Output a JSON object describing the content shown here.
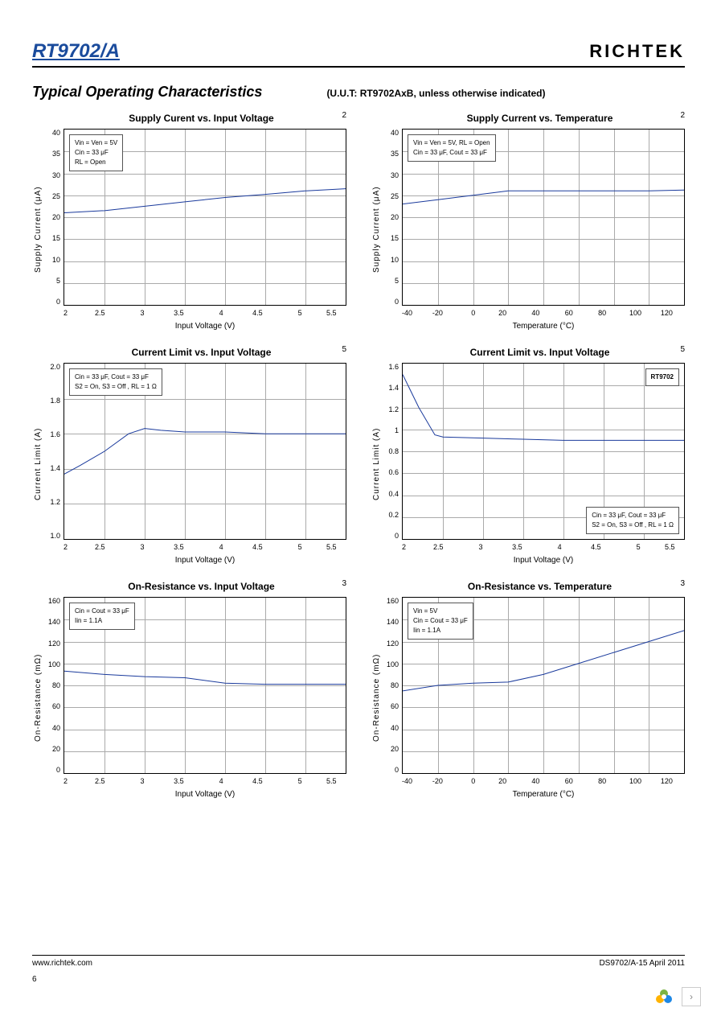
{
  "header": {
    "part_number": "RT9702/A",
    "logo": "RICHTEK"
  },
  "section": {
    "title": "Typical Operating Characteristics",
    "subtitle": "(U.U.T: RT9702AxB, unless otherwise indicated)"
  },
  "charts": [
    {
      "corner": "2",
      "title": "Supply Curent vs. Input Voltage",
      "ylabel": "Supply Current (μA)",
      "xlabel": "Input Voltage (V)",
      "yticks": [
        "40",
        "35",
        "30",
        "25",
        "20",
        "15",
        "10",
        "5",
        "0"
      ],
      "xticks": [
        "2",
        "2.5",
        "3",
        "3.5",
        "4",
        "4.5",
        "5",
        "5.5"
      ],
      "ylim": [
        0,
        40
      ],
      "xlim": [
        2,
        5.5
      ],
      "legend_pos": "top-left",
      "legend": [
        "Vin = Ven = 5V",
        "Cin = 33 μF",
        "RL = Open"
      ],
      "line_color": "#1a3a9c",
      "data": [
        [
          2,
          21
        ],
        [
          2.5,
          21.5
        ],
        [
          3,
          22.5
        ],
        [
          3.5,
          23.5
        ],
        [
          4,
          24.5
        ],
        [
          4.5,
          25.2
        ],
        [
          5,
          26
        ],
        [
          5.5,
          26.5
        ]
      ]
    },
    {
      "corner": "2",
      "title": "Supply Current vs. Temperature",
      "ylabel": "Supply Current (μA)",
      "xlabel": "Temperature (°C)",
      "yticks": [
        "40",
        "35",
        "30",
        "25",
        "20",
        "15",
        "10",
        "5",
        "0"
      ],
      "xticks": [
        "-40",
        "-20",
        "0",
        "20",
        "40",
        "60",
        "80",
        "100",
        "120"
      ],
      "ylim": [
        0,
        40
      ],
      "xlim": [
        -40,
        120
      ],
      "legend_pos": "top-left",
      "legend": [
        "Vin = Ven = 5V, RL = Open",
        "Cin = 33 μF, Cout = 33 μF"
      ],
      "line_color": "#1a3a9c",
      "data": [
        [
          -40,
          23
        ],
        [
          -20,
          24
        ],
        [
          0,
          25
        ],
        [
          20,
          26
        ],
        [
          40,
          26
        ],
        [
          60,
          26
        ],
        [
          80,
          26
        ],
        [
          100,
          26
        ],
        [
          120,
          26.2
        ]
      ]
    },
    {
      "corner": "5",
      "title": "Current Limit vs. Input Voltage",
      "ylabel": "Current Limit (A)",
      "xlabel": "Input Voltage (V)",
      "yticks": [
        "2.0",
        "1.8",
        "1.6",
        "1.4",
        "1.2",
        "1.0"
      ],
      "xticks": [
        "2",
        "2.5",
        "3",
        "3.5",
        "4",
        "4.5",
        "5",
        "5.5"
      ],
      "ylim": [
        1.0,
        2.0
      ],
      "xlim": [
        2,
        5.5
      ],
      "legend_pos": "top-left",
      "legend": [
        "Cin = 33 μF, Cout = 33 μF",
        "S2 = On, S3 = Off , RL = 1 Ω"
      ],
      "line_color": "#1a3a9c",
      "data": [
        [
          2,
          1.37
        ],
        [
          2.2,
          1.42
        ],
        [
          2.5,
          1.5
        ],
        [
          2.8,
          1.6
        ],
        [
          3,
          1.63
        ],
        [
          3.2,
          1.62
        ],
        [
          3.5,
          1.61
        ],
        [
          4,
          1.61
        ],
        [
          4.5,
          1.6
        ],
        [
          5,
          1.6
        ],
        [
          5.5,
          1.6
        ]
      ]
    },
    {
      "corner": "5",
      "title": "Current Limit vs. Input Voltage",
      "ylabel": "Current Limit (A)",
      "xlabel": "Input Voltage (V)",
      "yticks": [
        "1.6",
        "1.4",
        "1.2",
        "1",
        "0.8",
        "0.6",
        "0.4",
        "0.2",
        "0"
      ],
      "xticks": [
        "2",
        "2.5",
        "3",
        "3.5",
        "4",
        "4.5",
        "5",
        "5.5"
      ],
      "ylim": [
        0,
        1.6
      ],
      "xlim": [
        2,
        5.5
      ],
      "legend_pos": "bottom-right",
      "legend": [
        "Cin = 33 μF, Cout = 33 μF",
        "S2 = On, S3 = Off , RL = 1 Ω"
      ],
      "extra_label": "RT9702",
      "line_color": "#1a3a9c",
      "data": [
        [
          2,
          1.5
        ],
        [
          2.2,
          1.2
        ],
        [
          2.4,
          0.95
        ],
        [
          2.5,
          0.93
        ],
        [
          3,
          0.92
        ],
        [
          3.5,
          0.91
        ],
        [
          4,
          0.9
        ],
        [
          4.5,
          0.9
        ],
        [
          5,
          0.9
        ],
        [
          5.5,
          0.9
        ]
      ]
    },
    {
      "corner": "3",
      "title": "On-Resistance vs. Input Voltage",
      "ylabel": "On-Resistance (mΩ)",
      "xlabel": "Input Voltage (V)",
      "yticks": [
        "160",
        "140",
        "120",
        "100",
        "80",
        "60",
        "40",
        "20",
        "0"
      ],
      "xticks": [
        "2",
        "2.5",
        "3",
        "3.5",
        "4",
        "4.5",
        "5",
        "5.5"
      ],
      "ylim": [
        0,
        160
      ],
      "xlim": [
        2,
        5.5
      ],
      "legend_pos": "top-left",
      "legend": [
        "Cin = Cout = 33 μF",
        "Iin = 1.1A"
      ],
      "line_color": "#1a3a9c",
      "data": [
        [
          2,
          93
        ],
        [
          2.5,
          90
        ],
        [
          3,
          88
        ],
        [
          3.5,
          87
        ],
        [
          4,
          82
        ],
        [
          4.5,
          81
        ],
        [
          5,
          81
        ],
        [
          5.5,
          81
        ]
      ]
    },
    {
      "corner": "3",
      "title": "On-Resistance vs. Temperature",
      "ylabel": "On-Resistance (mΩ)",
      "xlabel": "Temperature (°C)",
      "yticks": [
        "160",
        "140",
        "120",
        "100",
        "80",
        "60",
        "40",
        "20",
        "0"
      ],
      "xticks": [
        "-40",
        "-20",
        "0",
        "20",
        "40",
        "60",
        "80",
        "100",
        "120"
      ],
      "ylim": [
        0,
        160
      ],
      "xlim": [
        -40,
        120
      ],
      "legend_pos": "top-left",
      "legend": [
        "Vin = 5V",
        "Cin = Cout = 33 μF",
        "Iin = 1.1A"
      ],
      "line_color": "#1a3a9c",
      "data": [
        [
          -40,
          75
        ],
        [
          -20,
          80
        ],
        [
          0,
          82
        ],
        [
          20,
          83
        ],
        [
          40,
          90
        ],
        [
          60,
          100
        ],
        [
          80,
          110
        ],
        [
          100,
          120
        ],
        [
          120,
          130
        ]
      ]
    }
  ],
  "footer": {
    "url": "www.richtek.com",
    "docref": "DS9702/A-15   April  2011",
    "page": "6"
  },
  "grid_color": "#aaaaaa",
  "background_color": "#ffffff"
}
